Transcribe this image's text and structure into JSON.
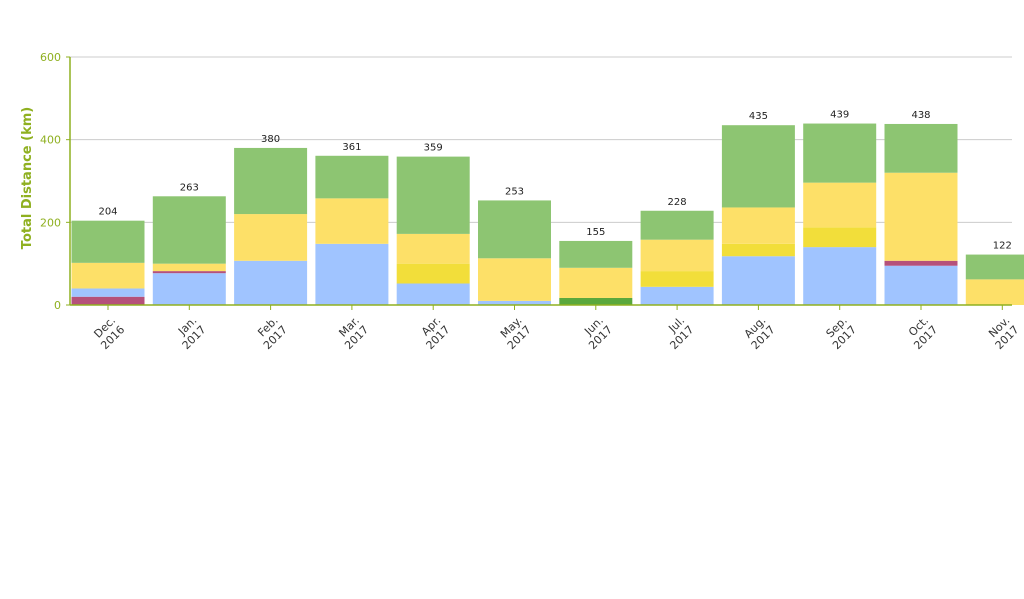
{
  "colors": {
    "axis": "#8fb020",
    "grid": "#cccccc",
    "text": "#222222"
  },
  "chart_data": {
    "type": "bar",
    "stacked": true,
    "ylabel": "Total Distance (km)",
    "xlabel": "",
    "ylim": [
      0,
      600
    ],
    "yticks": [
      0,
      200,
      400,
      600
    ],
    "grid": true,
    "legend": "none",
    "categories": [
      [
        "Dec.",
        "2016"
      ],
      [
        "Jan.",
        "2017"
      ],
      [
        "Feb.",
        "2017"
      ],
      [
        "Mar.",
        "2017"
      ],
      [
        "Apr.",
        "2017"
      ],
      [
        "May.",
        "2017"
      ],
      [
        "Jun.",
        "2017"
      ],
      [
        "Jul.",
        "2017"
      ],
      [
        "Aug.",
        "2017"
      ],
      [
        "Sep.",
        "2017"
      ],
      [
        "Oct.",
        "2017"
      ],
      [
        "Nov.",
        "2017"
      ]
    ],
    "totals": [
      204,
      263,
      380,
      361,
      359,
      253,
      155,
      228,
      435,
      439,
      438,
      122
    ],
    "series": [
      {
        "color": "#b5517a",
        "values": [
          20,
          0,
          0,
          0,
          0,
          0,
          0,
          0,
          0,
          0,
          0,
          0
        ]
      },
      {
        "color": "#5aa83c",
        "values": [
          0,
          0,
          0,
          0,
          0,
          0,
          17,
          0,
          0,
          0,
          0,
          0
        ]
      },
      {
        "color": "#a0c4ff",
        "values": [
          20,
          77,
          107,
          148,
          52,
          10,
          0,
          44,
          118,
          140,
          95,
          0
        ]
      },
      {
        "color": "#b5517a",
        "values": [
          0,
          5,
          0,
          0,
          0,
          0,
          0,
          0,
          0,
          0,
          12,
          0
        ]
      },
      {
        "color": "#f2de3a",
        "values": [
          0,
          0,
          0,
          0,
          48,
          0,
          0,
          38,
          30,
          48,
          0,
          0
        ]
      },
      {
        "color": "#fde068",
        "values": [
          62,
          18,
          113,
          110,
          72,
          103,
          73,
          76,
          88,
          108,
          213,
          62
        ]
      },
      {
        "color": "#8dc572",
        "values": [
          102,
          163,
          160,
          103,
          187,
          140,
          65,
          70,
          199,
          143,
          118,
          60
        ]
      }
    ]
  }
}
